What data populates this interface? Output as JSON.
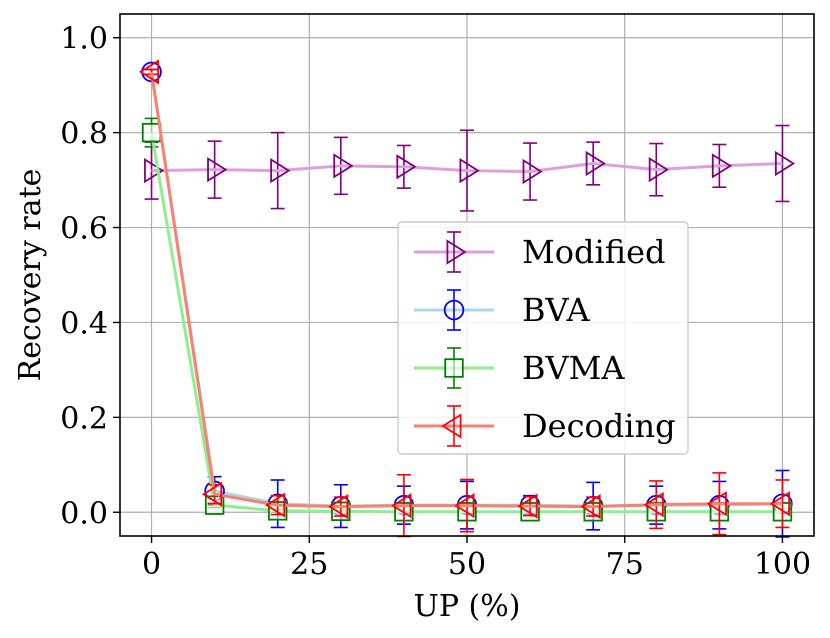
{
  "chart_data": {
    "type": "line",
    "title": "",
    "xlabel": "UP (%)",
    "ylabel": "Recovery rate",
    "xlim": [
      -5,
      105
    ],
    "ylim": [
      -0.05,
      1.05
    ],
    "xticks": [
      0,
      25,
      50,
      75,
      100
    ],
    "yticks": [
      0.0,
      0.2,
      0.4,
      0.6,
      0.8,
      1.0
    ],
    "xtick_labels": [
      "0",
      "25",
      "50",
      "75",
      "100"
    ],
    "ytick_labels": [
      "0.0",
      "0.2",
      "0.4",
      "0.6",
      "0.8",
      "1.0"
    ],
    "grid": true,
    "legend_position": "center-right",
    "x": [
      0,
      10,
      20,
      30,
      40,
      50,
      60,
      70,
      80,
      90,
      100
    ],
    "series": [
      {
        "name": "Modified",
        "line_color": "#dda0dd",
        "marker_color": "#800080",
        "marker": "triangle-right",
        "values": [
          0.72,
          0.722,
          0.72,
          0.73,
          0.728,
          0.72,
          0.718,
          0.735,
          0.722,
          0.73,
          0.735
        ],
        "errors": [
          0.06,
          0.06,
          0.08,
          0.06,
          0.045,
          0.085,
          0.06,
          0.045,
          0.055,
          0.045,
          0.08
        ]
      },
      {
        "name": "BVA",
        "line_color": "#add8e6",
        "marker_color": "#0000ff",
        "marker": "circle",
        "values": [
          0.928,
          0.045,
          0.018,
          0.013,
          0.015,
          0.015,
          0.015,
          0.013,
          0.015,
          0.015,
          0.018
        ],
        "errors": [
          0.005,
          0.03,
          0.05,
          0.045,
          0.04,
          0.05,
          0.02,
          0.05,
          0.04,
          0.05,
          0.07
        ]
      },
      {
        "name": "BVMA",
        "line_color": "#90ee90",
        "marker_color": "#008000",
        "marker": "square",
        "values": [
          0.8,
          0.015,
          0.003,
          0.002,
          0.001,
          0.001,
          0.001,
          0.001,
          0.001,
          0.001,
          0.001
        ],
        "errors": [
          0.03,
          0.005,
          0.003,
          0.002,
          0.001,
          0.001,
          0.001,
          0.001,
          0.001,
          0.001,
          0.001
        ]
      },
      {
        "name": "Decoding",
        "line_color": "#fa8072",
        "marker_color": "#ff0000",
        "marker": "triangle-left",
        "values": [
          0.928,
          0.038,
          0.015,
          0.012,
          0.014,
          0.014,
          0.013,
          0.012,
          0.016,
          0.018,
          0.018
        ],
        "errors": [
          0.005,
          0.02,
          0.02,
          0.02,
          0.065,
          0.055,
          0.02,
          0.02,
          0.05,
          0.065,
          0.05
        ]
      }
    ]
  }
}
